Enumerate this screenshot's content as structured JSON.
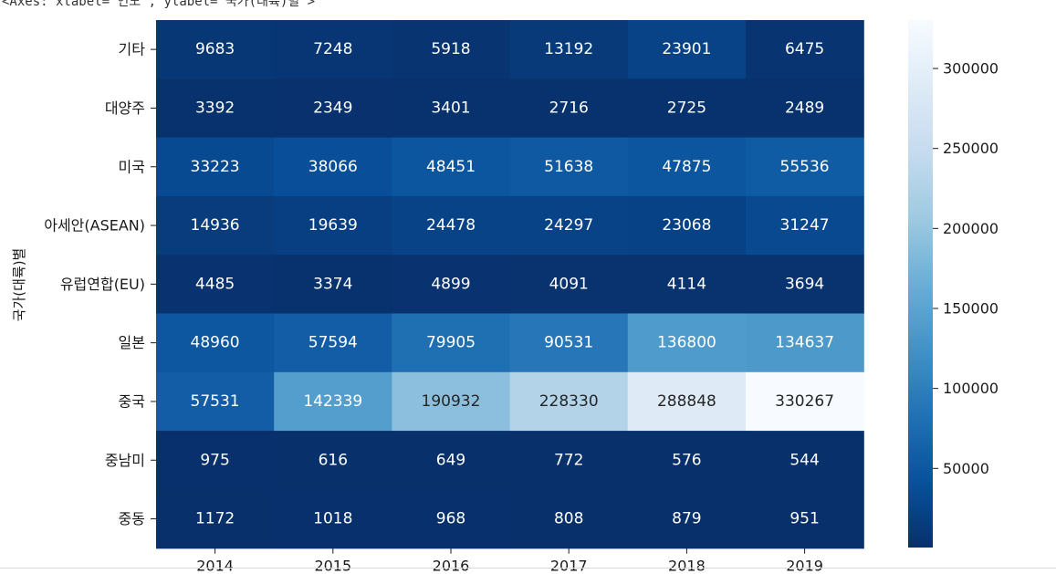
{
  "caption": "<Axes: xlabel='연도', ylabel='국가(대륙)별'>",
  "chart_data": {
    "type": "heatmap",
    "xlabel": "",
    "ylabel": "국가(대륙)별",
    "colormap": "Blues_r",
    "colors": {
      "low": "#08306b",
      "high": "#f7fbff"
    },
    "x_categories": [
      "2014",
      "2015",
      "2016",
      "2017",
      "2018",
      "2019"
    ],
    "y_categories": [
      "기타",
      "대양주",
      "미국",
      "아세안(ASEAN)",
      "유럽연합(EU)",
      "일본",
      "중국",
      "중남미",
      "중동"
    ],
    "values": [
      [
        9683,
        7248,
        5918,
        13192,
        23901,
        6475
      ],
      [
        3392,
        2349,
        3401,
        2716,
        2725,
        2489
      ],
      [
        33223,
        38066,
        48451,
        51638,
        47875,
        55536
      ],
      [
        14936,
        19639,
        24478,
        24297,
        23068,
        31247
      ],
      [
        4485,
        3374,
        4899,
        4091,
        4114,
        3694
      ],
      [
        48960,
        57594,
        79905,
        90531,
        136800,
        134637
      ],
      [
        57531,
        142339,
        190932,
        228330,
        288848,
        330267
      ],
      [
        975,
        616,
        649,
        772,
        576,
        544
      ],
      [
        1172,
        1018,
        968,
        808,
        879,
        951
      ]
    ],
    "colorbar": {
      "ticks": [
        50000,
        100000,
        150000,
        200000,
        250000,
        300000
      ],
      "range": [
        544,
        330267
      ]
    },
    "annotations": true
  }
}
